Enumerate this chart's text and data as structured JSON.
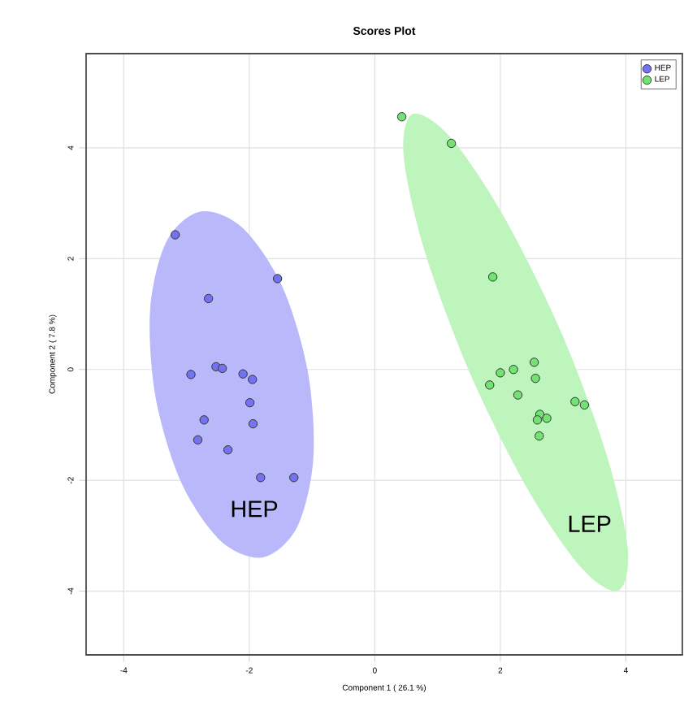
{
  "chart_data": {
    "type": "scatter",
    "title": "Scores Plot",
    "xlabel": "Component 1 ( 26.1 %)",
    "ylabel": "Component 2 ( 7.8 %)",
    "xlim": [
      -4.6,
      4.9
    ],
    "ylim": [
      -5.15,
      5.7
    ],
    "xticks": [
      -4,
      -2,
      0,
      2,
      4
    ],
    "yticks": [
      -4,
      -2,
      0,
      2,
      4
    ],
    "grid": true,
    "legend": "top right",
    "marker": "circle",
    "series": [
      {
        "type": "area",
        "color": "#b8b8fb",
        "marker": "none",
        "x": [
          -2.78,
          -2.11,
          -1.48,
          -1.07,
          -0.98,
          -1.24,
          -1.78,
          -2.45,
          -3.08,
          -3.49,
          -3.58,
          -3.32
        ],
        "values": [
          2.85,
          2.56,
          1.51,
          -0.02,
          -1.61,
          -2.85,
          -3.39,
          -3.1,
          -2.05,
          -0.52,
          1.07,
          2.31
        ]
      },
      {
        "type": "area",
        "color": "#bdf5bd",
        "marker": "none",
        "x": [
          0.6,
          1.19,
          2.05,
          2.97,
          3.69,
          4.03,
          3.88,
          3.3,
          2.43,
          1.51,
          0.79,
          0.46
        ],
        "values": [
          4.61,
          4.21,
          2.77,
          0.67,
          -1.53,
          -3.23,
          -3.99,
          -3.59,
          -2.15,
          -0.05,
          2.15,
          3.85
        ]
      },
      {
        "name": "HEP",
        "color": "#7272f2",
        "x": [
          -3.18,
          -1.55,
          -2.65,
          -2.93,
          -2.53,
          -2.43,
          -2.1,
          -1.95,
          -1.99,
          -2.72,
          -1.94,
          -2.82,
          -2.34,
          -1.82,
          -1.29
        ],
        "values": [
          2.43,
          1.64,
          1.28,
          -0.09,
          0.05,
          0.02,
          -0.08,
          -0.18,
          -0.6,
          -0.91,
          -0.98,
          -1.27,
          -1.45,
          -1.95,
          -1.95
        ]
      },
      {
        "name": "LEP",
        "color": "#72e272",
        "x": [
          0.43,
          1.22,
          1.88,
          2.54,
          2.21,
          2.0,
          2.56,
          1.83,
          2.28,
          3.19,
          3.34,
          2.63,
          2.74,
          2.59,
          2.62
        ],
        "values": [
          4.56,
          4.08,
          1.67,
          0.13,
          0.0,
          -0.06,
          -0.16,
          -0.28,
          -0.46,
          -0.58,
          -0.64,
          -0.81,
          -0.88,
          -0.91,
          -1.2
        ]
      }
    ],
    "annotations": [
      "HEP",
      "LEP"
    ]
  }
}
